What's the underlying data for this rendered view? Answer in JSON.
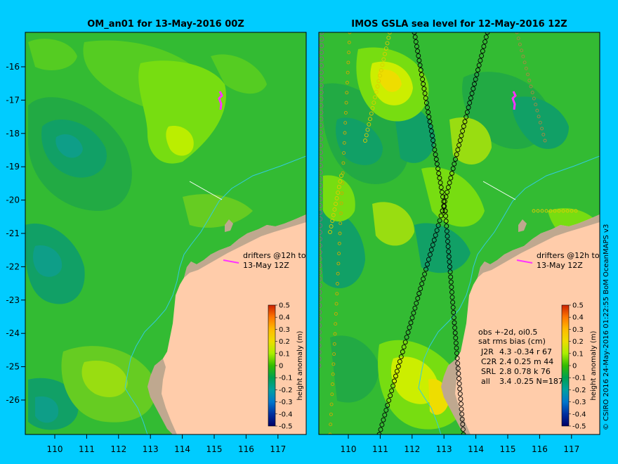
{
  "panels": [
    {
      "title": "OM_an01 for 13-May-2016 00Z",
      "drifter_note": [
        "drifters @12h to",
        "13-May 12Z"
      ]
    },
    {
      "title": "IMOS GSLA sea level  for 12-May-2016 12Z",
      "drifter_note": [
        "drifters @12h to",
        "13-May 12Z"
      ],
      "stats": {
        "line1": "obs +-2d, oi0.5",
        "line2": "sat rms bias (cm)",
        "rows": [
          {
            "sat": "J2R",
            "text": "4.3 -0.34 r 67"
          },
          {
            "sat": "C2R",
            "text": "2.4 0.25 m 44"
          },
          {
            "sat": "SRL",
            "text": "2.8 0.78 k 76"
          },
          {
            "sat": "all",
            "text": "3.4 .0.25 N=187"
          }
        ]
      }
    }
  ],
  "axes": {
    "lon_ticks": [
      "110",
      "111",
      "112",
      "113",
      "114",
      "115",
      "116",
      "117"
    ],
    "lat_ticks": [
      "-16",
      "-17",
      "-18",
      "-19",
      "-20",
      "-21",
      "-22",
      "-23",
      "-24",
      "-25",
      "-26"
    ],
    "lon_range": [
      109.1,
      118.0
    ],
    "lat_range": [
      -15.1,
      -27.1
    ]
  },
  "colorbar": {
    "label": "height anomaly (m)",
    "ticks": [
      "0.5",
      "0.4",
      "0.3",
      "0.2",
      "0.1",
      "0",
      "-0.1",
      "-0.2",
      "-0.3",
      "-0.4",
      "-0.5"
    ],
    "colors": [
      "#ff4400",
      "#ff8800",
      "#ffbb00",
      "#eedd00",
      "#aaee00",
      "#22bb00",
      "#00a050",
      "#00a0a0",
      "#0088cc",
      "#0040b0",
      "#000070"
    ]
  },
  "credit": "© CSIRO 2016   24-May-2016 01:22:55 BoM OceanMAPS v3",
  "colors": {
    "background": "#00ccff",
    "land": "#ffccaa",
    "coast_shelf": "#bfa88f",
    "ocean_base": "#33bb33",
    "frame": "#000000",
    "drifter": "#ff33ff",
    "isobath": "#33ccdd"
  }
}
